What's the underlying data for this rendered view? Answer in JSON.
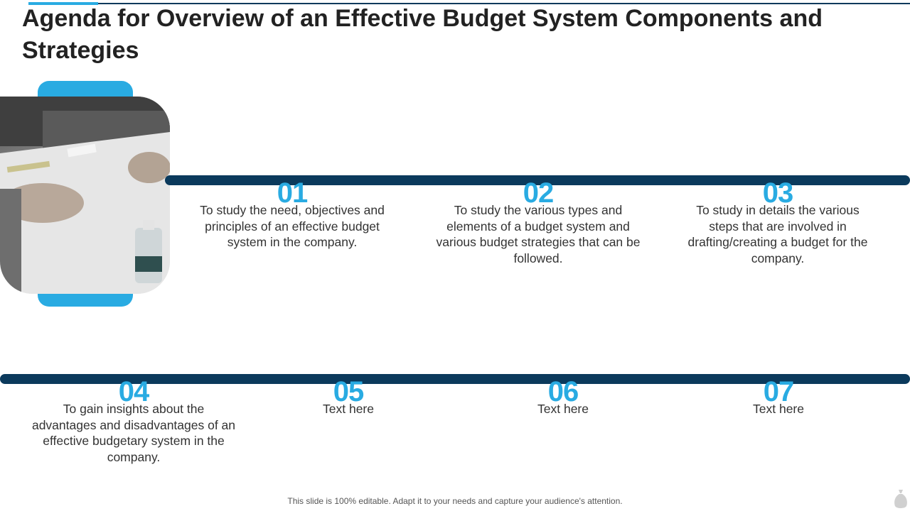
{
  "slide": {
    "title": "Agenda for Overview of an Effective Budget System Components and Strategies",
    "footer": "This slide is 100% editable. Adapt it to your needs and capture your audience's attention."
  },
  "colors": {
    "accent": "#29abe2",
    "navy": "#0b3a5c",
    "text": "#333333"
  },
  "image": {
    "icon": "meeting-photo"
  },
  "items": [
    {
      "number": "01",
      "text": "To study the need, objectives and principles of an effective budget system in the company."
    },
    {
      "number": "02",
      "text": "To study the various types and elements of a budget system and various budget strategies that can be followed."
    },
    {
      "number": "03",
      "text": "To study in details the various steps that are involved in drafting/creating a budget for the company."
    },
    {
      "number": "04",
      "text": "To gain insights about the advantages and disadvantages of an effective budgetary system in the company."
    },
    {
      "number": "05",
      "text": "Text here"
    },
    {
      "number": "06",
      "text": "Text here"
    },
    {
      "number": "07",
      "text": "Text here"
    }
  ]
}
